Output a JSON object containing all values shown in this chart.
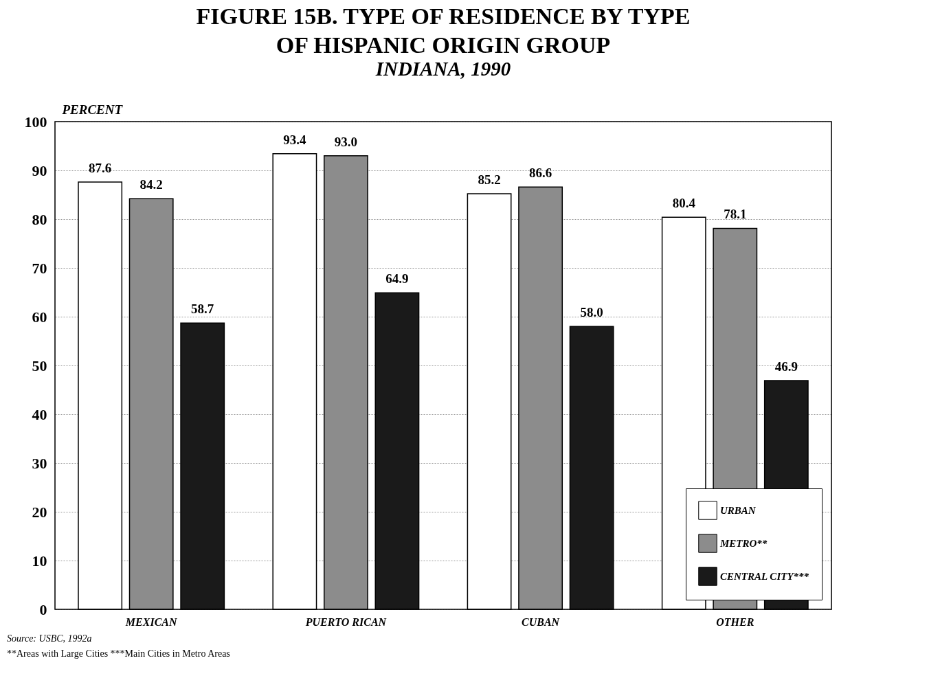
{
  "chart_data": {
    "type": "bar",
    "title": [
      "FIGURE 15B.  TYPE OF RESIDENCE BY TYPE",
      "OF HISPANIC ORIGIN GROUP"
    ],
    "subtitle": "INDIANA, 1990",
    "ylabel": "PERCENT",
    "categories": [
      "MEXICAN",
      "PUERTO RICAN",
      "CUBAN",
      "OTHER"
    ],
    "series": [
      {
        "name": "URBAN",
        "color": "#ffffff",
        "values": [
          87.6,
          93.4,
          85.2,
          80.4
        ],
        "value_labels": [
          "87.6",
          "93.4",
          "85.2",
          "80.4"
        ]
      },
      {
        "name": "METRO**",
        "color": "#8c8c8c",
        "values": [
          84.2,
          93.0,
          86.6,
          78.1
        ],
        "value_labels": [
          "84.2",
          "93.0",
          "86.6",
          "78.1"
        ]
      },
      {
        "name": "CENTRAL CITY***",
        "color": "#1a1a1a",
        "values": [
          58.7,
          64.9,
          58.0,
          46.9
        ],
        "value_labels": [
          "58.7",
          "64.9",
          "58.0",
          "46.9"
        ]
      }
    ],
    "ylim": [
      0,
      100
    ],
    "yticks": [
      0,
      10,
      20,
      30,
      40,
      50,
      60,
      70,
      80,
      90,
      100
    ],
    "grid": "y",
    "legend": "bottom right",
    "annotations": [
      "Source:  USBC, 1992a",
      "**Areas with Large Cities  ***Main Cities in Metro Areas"
    ]
  }
}
